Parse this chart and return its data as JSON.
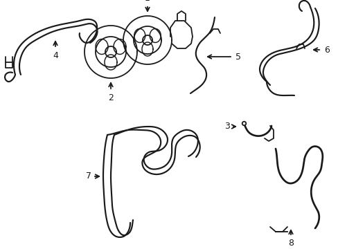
{
  "bg_color": "#ffffff",
  "line_color": "#1a1a1a",
  "lw": 1.3,
  "figsize": [
    4.89,
    3.6
  ],
  "dpi": 100
}
